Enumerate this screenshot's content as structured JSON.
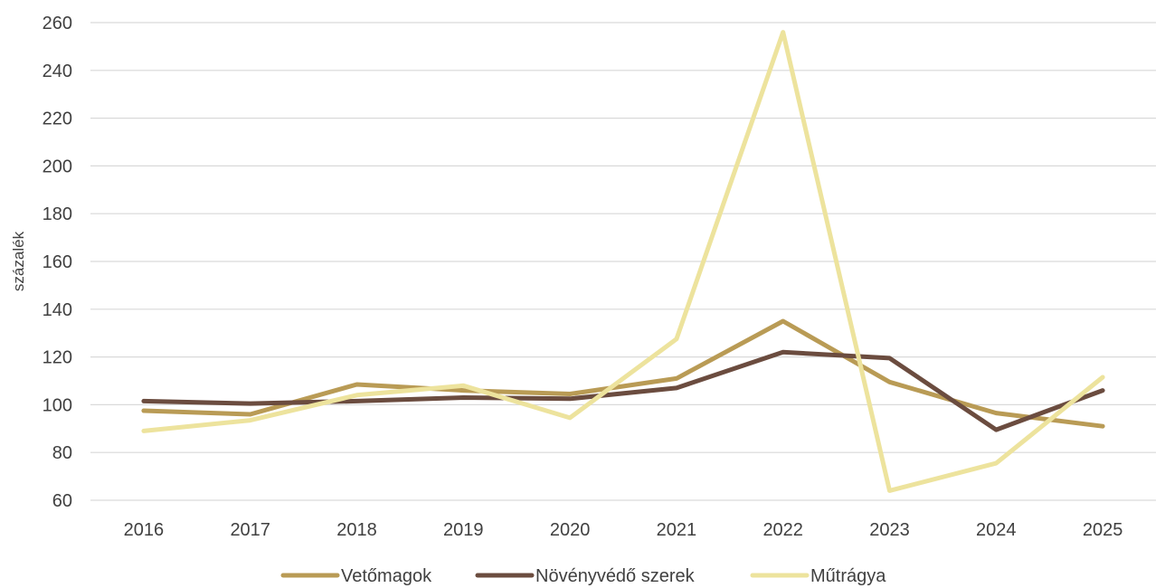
{
  "chart_data": {
    "type": "line",
    "title": "",
    "xlabel": "",
    "ylabel": "százalék",
    "ylim": [
      60,
      260
    ],
    "yticks": [
      60,
      80,
      100,
      120,
      140,
      160,
      180,
      200,
      220,
      240,
      260
    ],
    "grid": true,
    "legend_position": "bottom",
    "categories": [
      "2016",
      "2017",
      "2018",
      "2019",
      "2020",
      "2021",
      "2022",
      "2023",
      "2024",
      "2025"
    ],
    "series": [
      {
        "name": "Vetőmagok",
        "color": "#b99b55",
        "values": [
          97.5,
          96,
          108.5,
          106,
          104.5,
          111,
          135,
          109.5,
          96.5,
          91
        ]
      },
      {
        "name": "Növényvédő szerek",
        "color": "#6b4c3f",
        "values": [
          101.5,
          100.5,
          101.5,
          103,
          102.5,
          107,
          122,
          119.5,
          89.5,
          106
        ]
      },
      {
        "name": "Műtrágya",
        "color": "#ede39d",
        "values": [
          89,
          93.5,
          104,
          108,
          94.5,
          127.5,
          256,
          64,
          75.5,
          111.5
        ]
      }
    ]
  }
}
